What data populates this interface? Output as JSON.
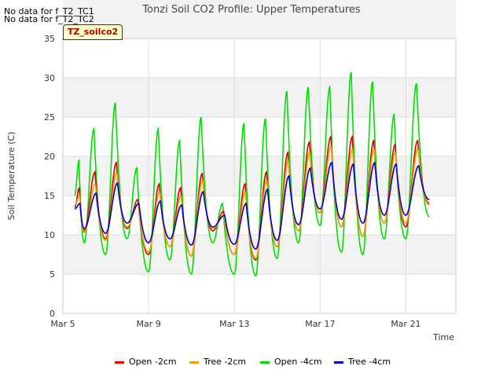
{
  "no_data_lines": [
    "No data for f_T2_TC1",
    "No data for f_T2_TC2"
  ],
  "tag_label": "TZ_soilco2",
  "chart_data": {
    "type": "line",
    "title": "Tonzi Soil CO2 Profile: Upper Temperatures",
    "xlabel": "Time",
    "ylabel": "Soil Temperature (C)",
    "ylim": [
      0,
      35
    ],
    "yticks": [
      0,
      5,
      10,
      15,
      20,
      25,
      30,
      35
    ],
    "xlim_days": [
      5,
      23.33
    ],
    "xtick_labels": [
      "Mar 5",
      "Mar 9",
      "Mar 13",
      "Mar 17",
      "Mar 21"
    ],
    "xtick_days": [
      5,
      9,
      13,
      17,
      21
    ],
    "grid": true,
    "legend_position": "bottom",
    "colors": {
      "open2": "#e00000",
      "tree2": "#f0a000",
      "open4": "#00e000",
      "tree4": "#0000cc",
      "band": "#f2f2f2",
      "grid": "#dddddd"
    },
    "daily_cycles": [
      {
        "day": 5.55,
        "open2": [
          13.5,
          16.0
        ],
        "tree2": [
          13.8,
          15.0
        ],
        "open4": [
          15.0,
          19.5
        ],
        "tree4": [
          13.3,
          14.0
        ]
      },
      {
        "day": 6,
        "open2": [
          10.5,
          18.0
        ],
        "tree2": [
          10.3,
          16.5
        ],
        "open4": [
          9.0,
          23.5
        ],
        "tree4": [
          10.8,
          15.3
        ]
      },
      {
        "day": 7,
        "open2": [
          9.5,
          19.2
        ],
        "tree2": [
          9.3,
          18.0
        ],
        "open4": [
          7.5,
          26.8
        ],
        "tree4": [
          10.2,
          16.6
        ]
      },
      {
        "day": 8,
        "open2": [
          10.8,
          14.5
        ],
        "tree2": [
          11.0,
          14.0
        ],
        "open4": [
          9.5,
          18.5
        ],
        "tree4": [
          11.5,
          14.0
        ]
      },
      {
        "day": 9,
        "open2": [
          7.5,
          16.5
        ],
        "tree2": [
          7.8,
          15.5
        ],
        "open4": [
          5.3,
          23.5
        ],
        "tree4": [
          9.0,
          14.3
        ]
      },
      {
        "day": 10,
        "open2": [
          8.5,
          16.0
        ],
        "tree2": [
          8.5,
          15.0
        ],
        "open4": [
          6.8,
          22.0
        ],
        "tree4": [
          9.5,
          13.8
        ]
      },
      {
        "day": 11,
        "open2": [
          7.3,
          17.8
        ],
        "tree2": [
          7.3,
          17.0
        ],
        "open4": [
          5.0,
          25.0
        ],
        "tree4": [
          8.7,
          15.5
        ]
      },
      {
        "day": 12,
        "open2": [
          10.5,
          13.0
        ],
        "tree2": [
          10.8,
          12.5
        ],
        "open4": [
          9.0,
          14.0
        ],
        "tree4": [
          11.0,
          12.5
        ]
      },
      {
        "day": 13,
        "open2": [
          7.5,
          16.5
        ],
        "tree2": [
          7.5,
          15.5
        ],
        "open4": [
          5.0,
          24.2
        ],
        "tree4": [
          8.8,
          14.0
        ]
      },
      {
        "day": 14,
        "open2": [
          6.8,
          18.0
        ],
        "tree2": [
          7.0,
          17.0
        ],
        "open4": [
          4.8,
          24.8
        ],
        "tree4": [
          8.2,
          15.8
        ]
      },
      {
        "day": 15,
        "open2": [
          8.5,
          20.5
        ],
        "tree2": [
          8.5,
          19.5
        ],
        "open4": [
          7.0,
          28.3
        ],
        "tree4": [
          9.3,
          17.5
        ]
      },
      {
        "day": 16,
        "open2": [
          10.5,
          21.8
        ],
        "tree2": [
          10.5,
          20.5
        ],
        "open4": [
          9.0,
          28.8
        ],
        "tree4": [
          11.3,
          18.5
        ]
      },
      {
        "day": 17,
        "open2": [
          12.8,
          22.5
        ],
        "tree2": [
          12.8,
          21.3
        ],
        "open4": [
          11.2,
          28.8
        ],
        "tree4": [
          13.3,
          19.2
        ]
      },
      {
        "day": 18,
        "open2": [
          11.0,
          22.5
        ],
        "tree2": [
          11.0,
          21.0
        ],
        "open4": [
          7.8,
          30.7
        ],
        "tree4": [
          12.0,
          19.0
        ]
      },
      {
        "day": 19,
        "open2": [
          9.8,
          22.0
        ],
        "tree2": [
          9.8,
          21.0
        ],
        "open4": [
          7.5,
          29.5
        ],
        "tree4": [
          11.5,
          19.2
        ]
      },
      {
        "day": 20,
        "open2": [
          11.5,
          21.5
        ],
        "tree2": [
          11.5,
          20.5
        ],
        "open4": [
          9.5,
          25.3
        ],
        "tree4": [
          12.5,
          19.0
        ]
      },
      {
        "day": 21,
        "open2": [
          11.0,
          22.0
        ],
        "tree2": [
          11.5,
          21.0
        ],
        "open4": [
          9.5,
          29.3
        ],
        "tree4": [
          12.5,
          18.8
        ]
      },
      {
        "day": 22.1,
        "open2": [
          14.0,
          16.0
        ],
        "tree2": [
          13.8,
          15.0
        ],
        "open4": [
          12.3,
          14.0
        ],
        "tree4": [
          14.5,
          15.0
        ]
      }
    ],
    "series": [
      {
        "name": "Open -2cm",
        "key": "open2"
      },
      {
        "name": "Tree -2cm",
        "key": "tree2"
      },
      {
        "name": "Open -4cm",
        "key": "open4"
      },
      {
        "name": "Tree -4cm",
        "key": "tree4"
      }
    ]
  }
}
